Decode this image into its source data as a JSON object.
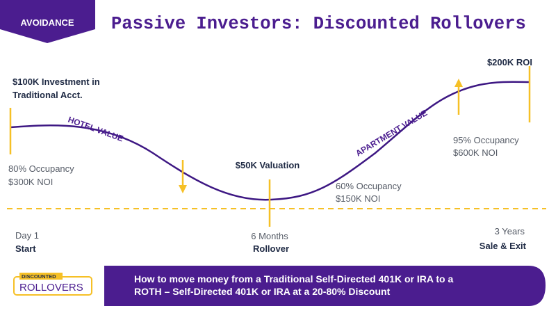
{
  "badge": "AVOIDANCE",
  "title": "Passive Investors: Discounted Rollovers",
  "curve_labels": {
    "hotel": "HOTEL VALUE",
    "apartment": "APARTMENT VALUE"
  },
  "start": {
    "investment": [
      "$100K Investment in",
      "Traditional Acct."
    ],
    "occupancy": "80% Occupancy",
    "noi": "$300K NOI",
    "time": "Day 1",
    "stage": "Start"
  },
  "rollover": {
    "valuation": "$50K Valuation",
    "occupancy": "60% Occupancy",
    "noi": "$150K NOI",
    "time": "6 Months",
    "stage": "Rollover"
  },
  "exit": {
    "roi": "$200K ROI",
    "occupancy": "95% Occupancy",
    "noi": "$600K NOI",
    "time": "3 Years",
    "stage": "Sale & Exit"
  },
  "logo": {
    "top": "DISCOUNTED",
    "bottom": "ROLLOVERS"
  },
  "banner": [
    "How to move money from a Traditional Self-Directed 401K or IRA to a",
    "ROTH – Self-Directed 401K or IRA at a 20-80% Discount"
  ]
}
